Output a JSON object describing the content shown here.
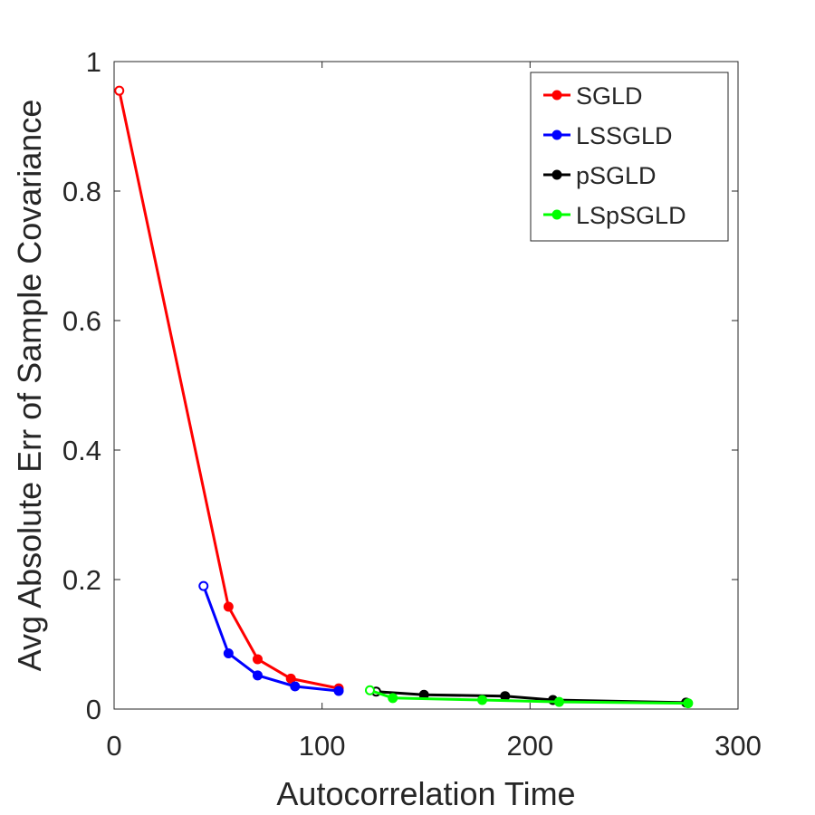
{
  "chart_data": {
    "type": "line",
    "xlabel": "Autocorrelation Time",
    "ylabel": "Avg Absolute Err of Sample Covariance",
    "xlim": [
      0,
      300
    ],
    "ylim": [
      0,
      1
    ],
    "xticks": [
      "0",
      "100",
      "200",
      "300"
    ],
    "yticks": [
      "0",
      "0.2",
      "0.4",
      "0.6",
      "0.8",
      "1"
    ],
    "grid": false,
    "legend_position": "top-right",
    "series": [
      {
        "name": "SGLD",
        "color": "#ff0000",
        "x": [
          2.5,
          55,
          69,
          85,
          108
        ],
        "y": [
          0.955,
          0.158,
          0.077,
          0.047,
          0.032
        ]
      },
      {
        "name": "LSSGLD",
        "color": "#0000ff",
        "x": [
          43,
          55,
          69,
          87,
          108
        ],
        "y": [
          0.19,
          0.086,
          0.052,
          0.035,
          0.028
        ]
      },
      {
        "name": "pSGLD",
        "color": "#000000",
        "x": [
          126,
          149,
          188,
          211,
          275
        ],
        "y": [
          0.027,
          0.022,
          0.02,
          0.014,
          0.01
        ]
      },
      {
        "name": "LSpSGLD",
        "color": "#00ff00",
        "x": [
          123,
          134,
          177,
          214,
          276
        ],
        "y": [
          0.029,
          0.017,
          0.014,
          0.011,
          0.009
        ]
      }
    ]
  }
}
